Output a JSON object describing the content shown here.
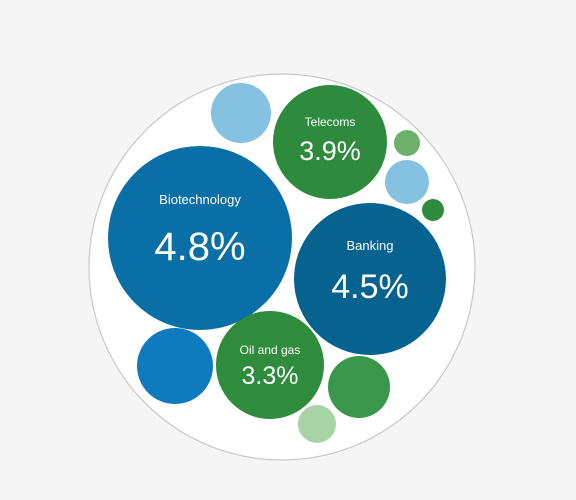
{
  "chart_data": {
    "type": "bubble",
    "colors": {
      "page_background": "#f5f5f5",
      "container_fill": "#ffffff",
      "container_stroke": "#c8c8c8"
    },
    "bubbles": [
      {
        "id": "biotechnology",
        "label": "Biotechnology",
        "value": "4.8%",
        "color": "#0a6fa6"
      },
      {
        "id": "banking",
        "label": "Banking",
        "value": "4.5%",
        "color": "#06628f"
      },
      {
        "id": "telecoms",
        "label": "Telecoms",
        "value": "3.9%",
        "color": "#2e8b3e"
      },
      {
        "id": "oil-and-gas",
        "label": "Oil and gas",
        "value": "3.3%",
        "color": "#2f8c3c"
      },
      {
        "id": "blue-top",
        "label": "",
        "value": "",
        "color": "#85c1e0"
      },
      {
        "id": "green-small-top-right",
        "label": "",
        "value": "",
        "color": "#6cb06a"
      },
      {
        "id": "blue-small-right",
        "label": "",
        "value": "",
        "color": "#85c1e0"
      },
      {
        "id": "green-tiny-right",
        "label": "",
        "value": "",
        "color": "#2e8b3e"
      },
      {
        "id": "blue-bottom-left",
        "label": "",
        "value": "",
        "color": "#0f7bbf"
      },
      {
        "id": "green-bottom-right",
        "label": "",
        "value": "",
        "color": "#38974a"
      },
      {
        "id": "green-pale-bottom",
        "label": "",
        "value": "",
        "color": "#a8d3a6"
      }
    ]
  }
}
